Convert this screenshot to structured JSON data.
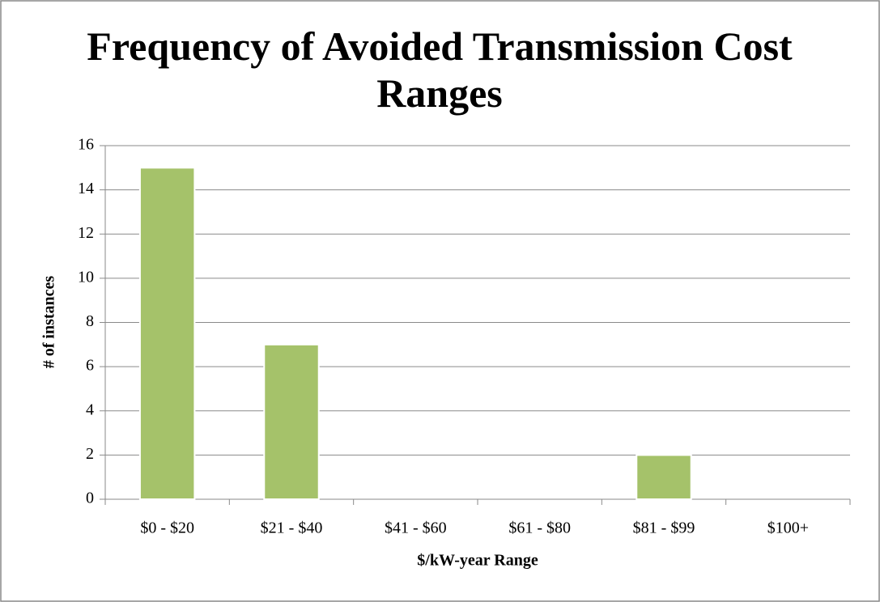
{
  "chart_data": {
    "type": "bar",
    "title": "Frequency of Avoided Transmission Cost Ranges",
    "xlabel": "$/kW-year Range",
    "ylabel": "# of instances",
    "categories": [
      "$0 - $20",
      "$21 - $40",
      "$41 - $60",
      "$61 - $80",
      "$81 - $99",
      "$100+"
    ],
    "values": [
      15,
      7,
      0,
      0,
      2,
      0
    ],
    "color": "#a5c26a",
    "ylim": [
      0,
      16
    ],
    "yticks": [
      0,
      2,
      4,
      6,
      8,
      10,
      12,
      14,
      16
    ],
    "grid": true
  }
}
